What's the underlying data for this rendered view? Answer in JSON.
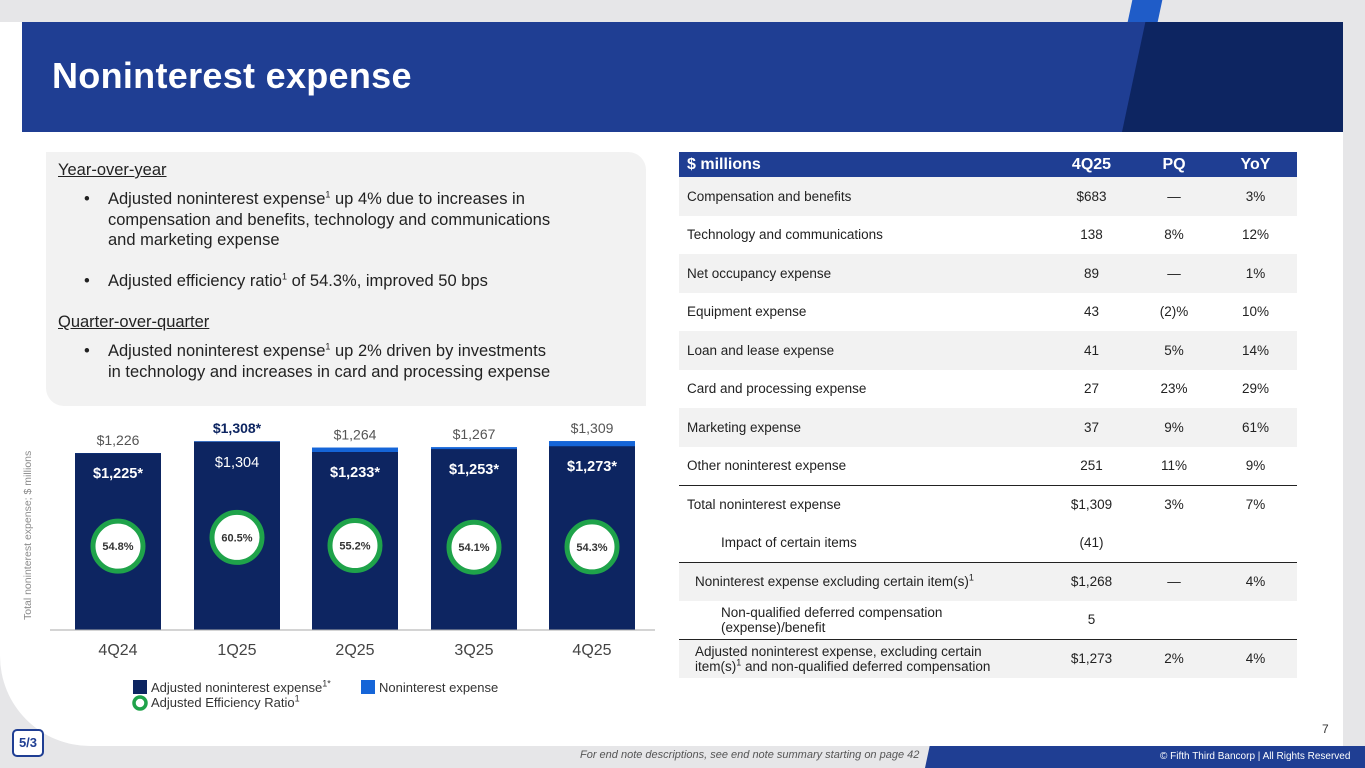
{
  "title": "Noninterest expense",
  "commentary": {
    "yoy_heading": "Year-over-year",
    "yoy_bullet1": [
      "Adjusted noninterest expense",
      "1",
      " up 4% due to increases in",
      "compensation and benefits, technology and communications",
      "and marketing expense"
    ],
    "yoy_bullet2": [
      "Adjusted efficiency ratio",
      "1",
      " of 54.3%, improved 50 bps"
    ],
    "qoq_heading": "Quarter-over-quarter",
    "qoq_bullet1": [
      "Adjusted noninterest expense",
      "1",
      " up 2% driven by investments",
      "in technology and increases in card and processing expense"
    ],
    "bullet_char": "•"
  },
  "chart_data": {
    "type": "bar",
    "categories": [
      "4Q24",
      "1Q25",
      "2Q25",
      "3Q25",
      "4Q25"
    ],
    "series": [
      {
        "name": "Adjusted noninterest expense",
        "values": [
          1225,
          1304,
          1233,
          1253,
          1273
        ]
      },
      {
        "name": "Noninterest expense",
        "values": [
          1226,
          1308,
          1264,
          1267,
          1309
        ]
      },
      {
        "name": "Adjusted Efficiency Ratio",
        "values": [
          54.8,
          60.5,
          55.2,
          54.1,
          54.3
        ]
      }
    ],
    "adjusted_labels": [
      "$1,225*",
      "$1,304",
      "$1,233*",
      "$1,253*",
      "$1,273*"
    ],
    "total_labels": [
      "$1,226",
      "$1,308*",
      "$1,264",
      "$1,267",
      "$1,309"
    ],
    "ratio_labels": [
      "54.8%",
      "60.5%",
      "55.2%",
      "54.1%",
      "54.3%"
    ],
    "ylabel": "Total noninterest expense; $ millions",
    "ylim": [
      0,
      1330
    ],
    "colors": {
      "adjusted": "#0d2561",
      "total": "#1565d8",
      "ratio_ring": "#1fa34a"
    },
    "legend": {
      "adjusted": "Adjusted noninterest expense",
      "adjusted_sup": "1*",
      "total": "Noninterest expense",
      "ratio": "Adjusted Efficiency Ratio",
      "ratio_sup": "1"
    }
  },
  "table": {
    "headers": [
      "$ millions",
      "4Q25",
      "PQ",
      "YoY"
    ],
    "rows": [
      {
        "label": "Compensation and benefits",
        "v": "$683",
        "pq": "—",
        "yoy": "3%"
      },
      {
        "label": "Technology and communications",
        "v": "138",
        "pq": "8%",
        "yoy": "12%"
      },
      {
        "label": "Net occupancy expense",
        "v": "89",
        "pq": "—",
        "yoy": "1%"
      },
      {
        "label": "Equipment expense",
        "v": "43",
        "pq": "(2)%",
        "yoy": "10%"
      },
      {
        "label": "Loan and lease expense",
        "v": "41",
        "pq": "5%",
        "yoy": "14%"
      },
      {
        "label": "Card and processing expense",
        "v": "27",
        "pq": "23%",
        "yoy": "29%"
      },
      {
        "label": "Marketing expense",
        "v": "37",
        "pq": "9%",
        "yoy": "61%"
      },
      {
        "label": "Other noninterest expense",
        "v": "251",
        "pq": "11%",
        "yoy": "9%"
      },
      {
        "label": "Total noninterest expense",
        "v": "$1,309",
        "pq": "3%",
        "yoy": "7%"
      },
      {
        "label": "Impact of certain items",
        "v": "(41)",
        "pq": "",
        "yoy": ""
      },
      {
        "label": "Noninterest expense excluding certain item(s)",
        "sup": "1",
        "v": "$1,268",
        "pq": "—",
        "yoy": "4%"
      },
      {
        "label": [
          "Non-qualified deferred compensation",
          "(expense)/benefit"
        ],
        "v": "5",
        "pq": "",
        "yoy": ""
      },
      {
        "label": [
          "Adjusted noninterest expense, excluding certain",
          "item(s)",
          " and non-qualified deferred compensation"
        ],
        "sup": "1",
        "v": "$1,273",
        "pq": "2%",
        "yoy": "4%"
      }
    ]
  },
  "page_number": "7",
  "logo_text": "5/3",
  "end_note": "For end note descriptions, see end note summary starting on page 42",
  "copyright": "© Fifth Third Bancorp | All Rights Reserved",
  "colors": {
    "brand_blue": "#1f3e93",
    "dark_navy": "#0d2561"
  }
}
